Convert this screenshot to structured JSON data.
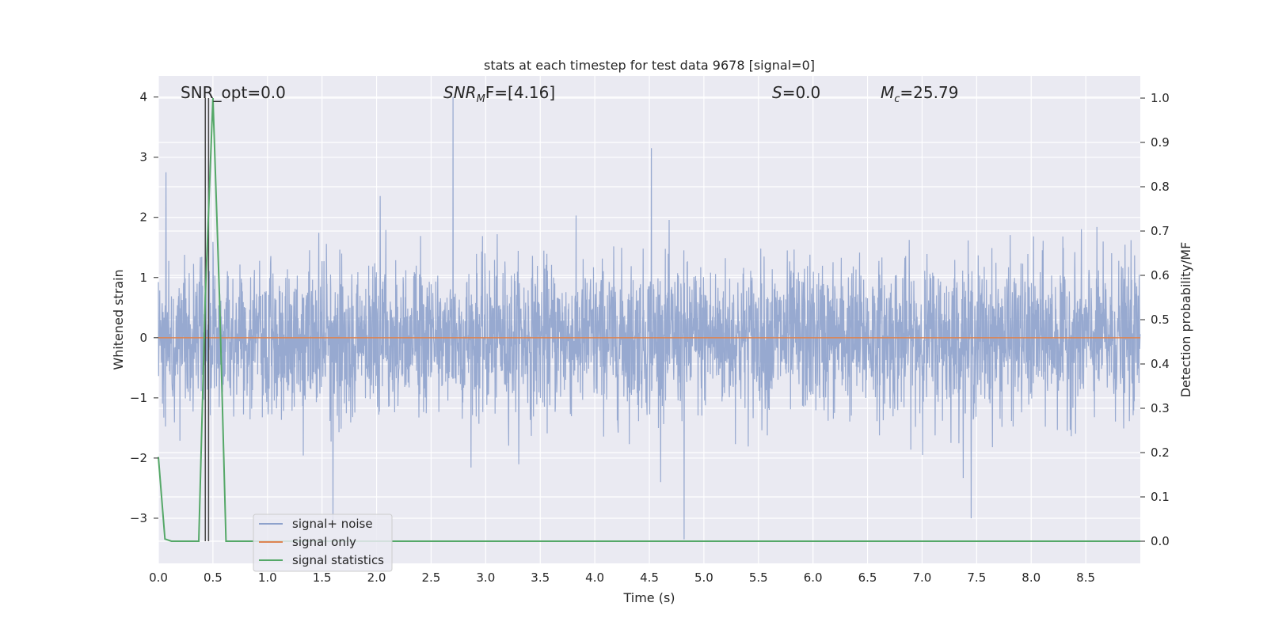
{
  "chart_data": {
    "type": "line",
    "title": "stats at each timestep for test data 9678 [signal=0]",
    "xlabel": "Time (s)",
    "ylabel_left": "Whitened strain",
    "ylabel_right": "Detection probability/MF",
    "xlim": [
      0.0,
      9.0
    ],
    "ylim_left": [
      -3.75,
      4.35
    ],
    "ylim_right": [
      -0.05,
      1.05
    ],
    "x_ticks": [
      "0.0",
      "0.5",
      "1.0",
      "1.5",
      "2.0",
      "2.5",
      "3.0",
      "3.5",
      "4.0",
      "4.5",
      "5.0",
      "5.5",
      "6.0",
      "6.5",
      "7.0",
      "7.5",
      "8.0",
      "8.5"
    ],
    "y_ticks_left": [
      "−3",
      "−2",
      "−1",
      "0",
      "1",
      "2",
      "3",
      "4"
    ],
    "y_ticks_right": [
      "0.0",
      "0.1",
      "0.2",
      "0.3",
      "0.4",
      "0.5",
      "0.6",
      "0.7",
      "0.8",
      "0.9",
      "1.0"
    ],
    "grid": true,
    "legend_position": "lower-left",
    "annotations": {
      "snr_opt": "SNR_opt=0.0",
      "snr_mf_main": "SNR",
      "snr_mf_sub": "M",
      "snr_mf_rest": "F=[4.16]",
      "s_main": "S",
      "s_rest": "=0.0",
      "mc_main": "M",
      "mc_sub": "c",
      "mc_rest": "=25.79"
    },
    "series": [
      {
        "name": "signal+ noise",
        "axis": "left",
        "color": "#8ea2cc",
        "description_stats": {
          "typical_range": [
            -1.2,
            1.2
          ],
          "peaks": [
            [
              0.07,
              2.75
            ],
            [
              2.7,
              4.0
            ],
            [
              4.52,
              3.15
            ],
            [
              4.82,
              -3.35
            ],
            [
              7.45,
              -3.0
            ],
            [
              1.6,
              -3.1
            ]
          ]
        }
      },
      {
        "name": "signal only",
        "axis": "left",
        "color": "#dd8452",
        "x": [
          0.0,
          9.0
        ],
        "y": [
          0.0,
          0.0
        ]
      },
      {
        "name": "signal statistics",
        "axis": "right",
        "color": "#55a868",
        "x": [
          0.0,
          0.06,
          0.12,
          0.37,
          0.43,
          0.5,
          0.56,
          0.62,
          9.0
        ],
        "y": [
          0.19,
          0.005,
          0.0,
          0.0,
          0.55,
          1.0,
          0.55,
          0.0,
          0.0
        ]
      }
    ],
    "vertical_lines": [
      0.43,
      0.46
    ],
    "vertical_line_color": "#4a4a4a"
  },
  "colors": {
    "plot_bg": "#eaeaf2",
    "grid": "#ffffff",
    "text": "#262626"
  }
}
